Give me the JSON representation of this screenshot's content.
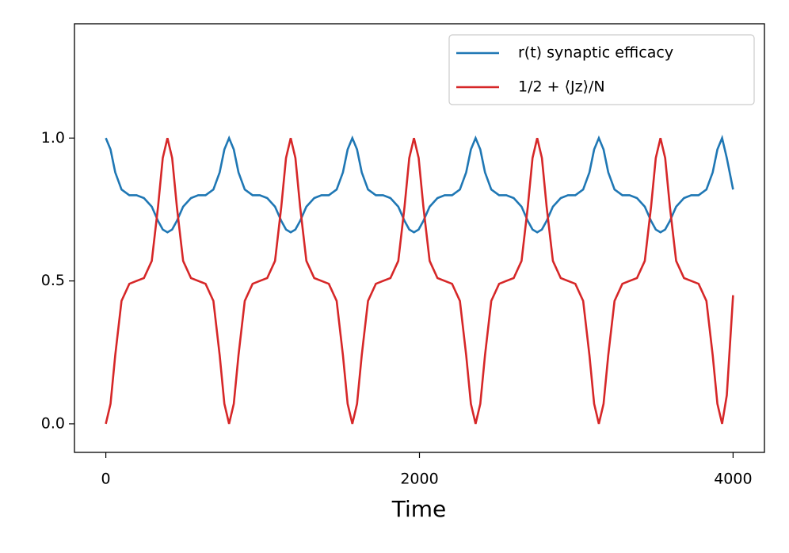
{
  "chart_data": {
    "type": "line",
    "xlabel": "Time",
    "xlim": [
      -200,
      4200
    ],
    "ylim": [
      -0.1,
      1.4
    ],
    "xticks": [
      0,
      2000,
      4000
    ],
    "yticks": [
      {
        "value": 0,
        "label": "0.0"
      },
      0.5,
      {
        "value": 1,
        "label": "1.0"
      }
    ],
    "legend": "upper right",
    "x": [
      0,
      30,
      60,
      100,
      150,
      196,
      243,
      293,
      333,
      363,
      393,
      423,
      453,
      493,
      543,
      589,
      636,
      686,
      726,
      756,
      786,
      816,
      846,
      886,
      936,
      982,
      1029,
      1079,
      1119,
      1149,
      1179,
      1209,
      1239,
      1279,
      1329,
      1375,
      1422,
      1472,
      1512,
      1542,
      1572,
      1602,
      1632,
      1672,
      1722,
      1768,
      1815,
      1865,
      1905,
      1935,
      1965,
      1995,
      2025,
      2065,
      2115,
      2161,
      2208,
      2258,
      2298,
      2328,
      2358,
      2388,
      2418,
      2458,
      2508,
      2554,
      2601,
      2651,
      2691,
      2721,
      2751,
      2781,
      2811,
      2851,
      2901,
      2947,
      2994,
      3044,
      3084,
      3114,
      3144,
      3174,
      3204,
      3244,
      3294,
      3340,
      3387,
      3437,
      3477,
      3507,
      3537,
      3567,
      3597,
      3637,
      3687,
      3733,
      3780,
      3830,
      3870,
      3900,
      3930,
      3960,
      4000
    ],
    "series": [
      {
        "name": "r(t) synaptic efficacy",
        "color": "#1f77b4",
        "values": [
          1.0,
          0.96,
          0.88,
          0.82,
          0.8,
          0.8,
          0.79,
          0.76,
          0.71,
          0.68,
          0.67,
          0.68,
          0.71,
          0.76,
          0.79,
          0.8,
          0.8,
          0.82,
          0.88,
          0.96,
          1.0,
          0.96,
          0.88,
          0.82,
          0.8,
          0.8,
          0.79,
          0.76,
          0.71,
          0.68,
          0.67,
          0.68,
          0.71,
          0.76,
          0.79,
          0.8,
          0.8,
          0.82,
          0.88,
          0.96,
          1.0,
          0.96,
          0.88,
          0.82,
          0.8,
          0.8,
          0.79,
          0.76,
          0.71,
          0.68,
          0.67,
          0.68,
          0.71,
          0.76,
          0.79,
          0.8,
          0.8,
          0.82,
          0.88,
          0.96,
          1.0,
          0.96,
          0.88,
          0.82,
          0.8,
          0.8,
          0.79,
          0.76,
          0.71,
          0.68,
          0.67,
          0.68,
          0.71,
          0.76,
          0.79,
          0.8,
          0.8,
          0.82,
          0.88,
          0.96,
          1.0,
          0.96,
          0.88,
          0.82,
          0.8,
          0.8,
          0.79,
          0.76,
          0.71,
          0.68,
          0.67,
          0.68,
          0.71,
          0.76,
          0.79,
          0.8,
          0.8,
          0.82,
          0.88,
          0.96,
          1.0,
          0.93,
          0.82
        ]
      },
      {
        "name": "1/2 + ⟨Jz⟩/N",
        "color": "#d62728",
        "values": [
          0,
          0.07,
          0.24,
          0.43,
          0.49,
          0.5,
          0.51,
          0.57,
          0.76,
          0.93,
          1.0,
          0.93,
          0.76,
          0.57,
          0.51,
          0.5,
          0.49,
          0.43,
          0.24,
          0.07,
          0,
          0.07,
          0.24,
          0.43,
          0.49,
          0.5,
          0.51,
          0.57,
          0.76,
          0.93,
          1.0,
          0.93,
          0.76,
          0.57,
          0.51,
          0.5,
          0.49,
          0.43,
          0.24,
          0.07,
          0,
          0.07,
          0.24,
          0.43,
          0.49,
          0.5,
          0.51,
          0.57,
          0.76,
          0.93,
          1.0,
          0.93,
          0.76,
          0.57,
          0.51,
          0.5,
          0.49,
          0.43,
          0.24,
          0.07,
          0,
          0.07,
          0.24,
          0.43,
          0.49,
          0.5,
          0.51,
          0.57,
          0.76,
          0.93,
          1.0,
          0.93,
          0.76,
          0.57,
          0.51,
          0.5,
          0.49,
          0.43,
          0.24,
          0.07,
          0,
          0.07,
          0.24,
          0.43,
          0.49,
          0.5,
          0.51,
          0.57,
          0.76,
          0.93,
          1.0,
          0.93,
          0.76,
          0.57,
          0.51,
          0.5,
          0.49,
          0.43,
          0.24,
          0.07,
          0,
          0.1,
          0.45
        ]
      }
    ]
  }
}
